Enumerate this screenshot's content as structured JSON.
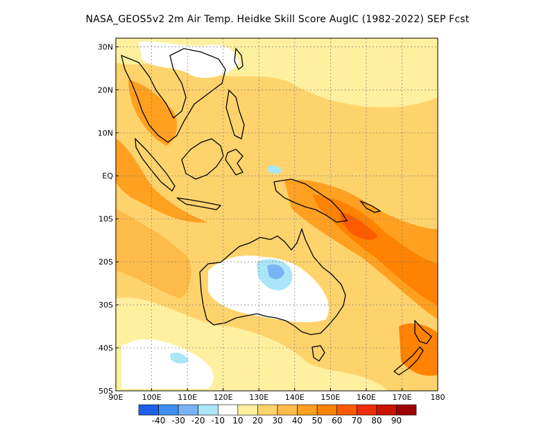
{
  "title": "NASA_GEOS5v2  2m Air Temp. Heidke Skill Score AugIC (1982-2022) SEP Fcst",
  "map": {
    "lon_range": [
      90,
      180
    ],
    "lat_range": [
      -50,
      32
    ],
    "lat_ticks": [
      {
        "value": 30,
        "label": "30N"
      },
      {
        "value": 20,
        "label": "20N"
      },
      {
        "value": 10,
        "label": "10N"
      },
      {
        "value": 0,
        "label": "EQ"
      },
      {
        "value": -10,
        "label": "10S"
      },
      {
        "value": -20,
        "label": "20S"
      },
      {
        "value": -30,
        "label": "30S"
      },
      {
        "value": -40,
        "label": "40S"
      },
      {
        "value": -50,
        "label": "50S"
      }
    ],
    "lon_ticks": [
      {
        "value": 90,
        "label": "90E"
      },
      {
        "value": 100,
        "label": "100E"
      },
      {
        "value": 110,
        "label": "110E"
      },
      {
        "value": 120,
        "label": "120E"
      },
      {
        "value": 130,
        "label": "130E"
      },
      {
        "value": 140,
        "label": "140E"
      },
      {
        "value": 150,
        "label": "150E"
      },
      {
        "value": 160,
        "label": "160E"
      },
      {
        "value": 170,
        "label": "170E"
      },
      {
        "value": 180,
        "label": "180"
      }
    ],
    "grid": true
  },
  "colorbar": {
    "colors": [
      "#1e5fe6",
      "#3c8ef0",
      "#78b4f5",
      "#aae6f8",
      "#ffffff",
      "#fff0a0",
      "#ffd36c",
      "#ffbb4a",
      "#ffa020",
      "#ff8200",
      "#ff5a00",
      "#ee2d0a",
      "#c81400",
      "#a00000"
    ],
    "labels": [
      "-40",
      "-30",
      "-20",
      "-10",
      "10",
      "20",
      "30",
      "40",
      "50",
      "60",
      "70",
      "80",
      "90"
    ]
  }
}
